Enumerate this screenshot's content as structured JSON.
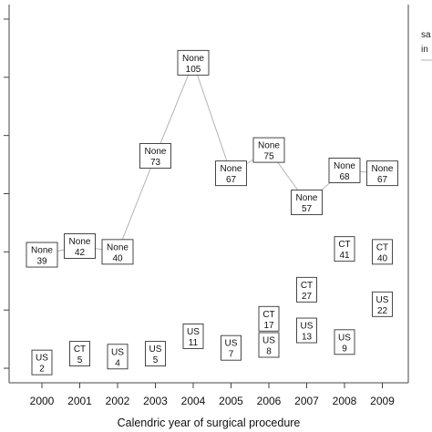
{
  "chart_data": {
    "type": "line",
    "x": [
      "2000",
      "2001",
      "2002",
      "2003",
      "2004",
      "2005",
      "2006",
      "2007",
      "2008",
      "2009"
    ],
    "xlabel": "Calendric year of surgical procedure",
    "ylabel": "",
    "ylim": [
      -5,
      125
    ],
    "grid": false,
    "legend_position": "top-right",
    "legend_entries": [
      "sa",
      "in"
    ],
    "colors": {
      "line": "#b3b3b3",
      "text": "#111111",
      "box": "#333333"
    },
    "series": [
      {
        "name": "None",
        "values": [
          39,
          42,
          40,
          73,
          105,
          67,
          75,
          57,
          68,
          67
        ],
        "connected": true
      },
      {
        "name": "CT",
        "values": [
          null,
          5,
          null,
          null,
          null,
          null,
          17,
          27,
          41,
          40
        ],
        "connected": false
      },
      {
        "name": "US",
        "values": [
          2,
          null,
          4,
          5,
          11,
          7,
          8,
          13,
          9,
          22
        ],
        "connected": false
      }
    ]
  }
}
